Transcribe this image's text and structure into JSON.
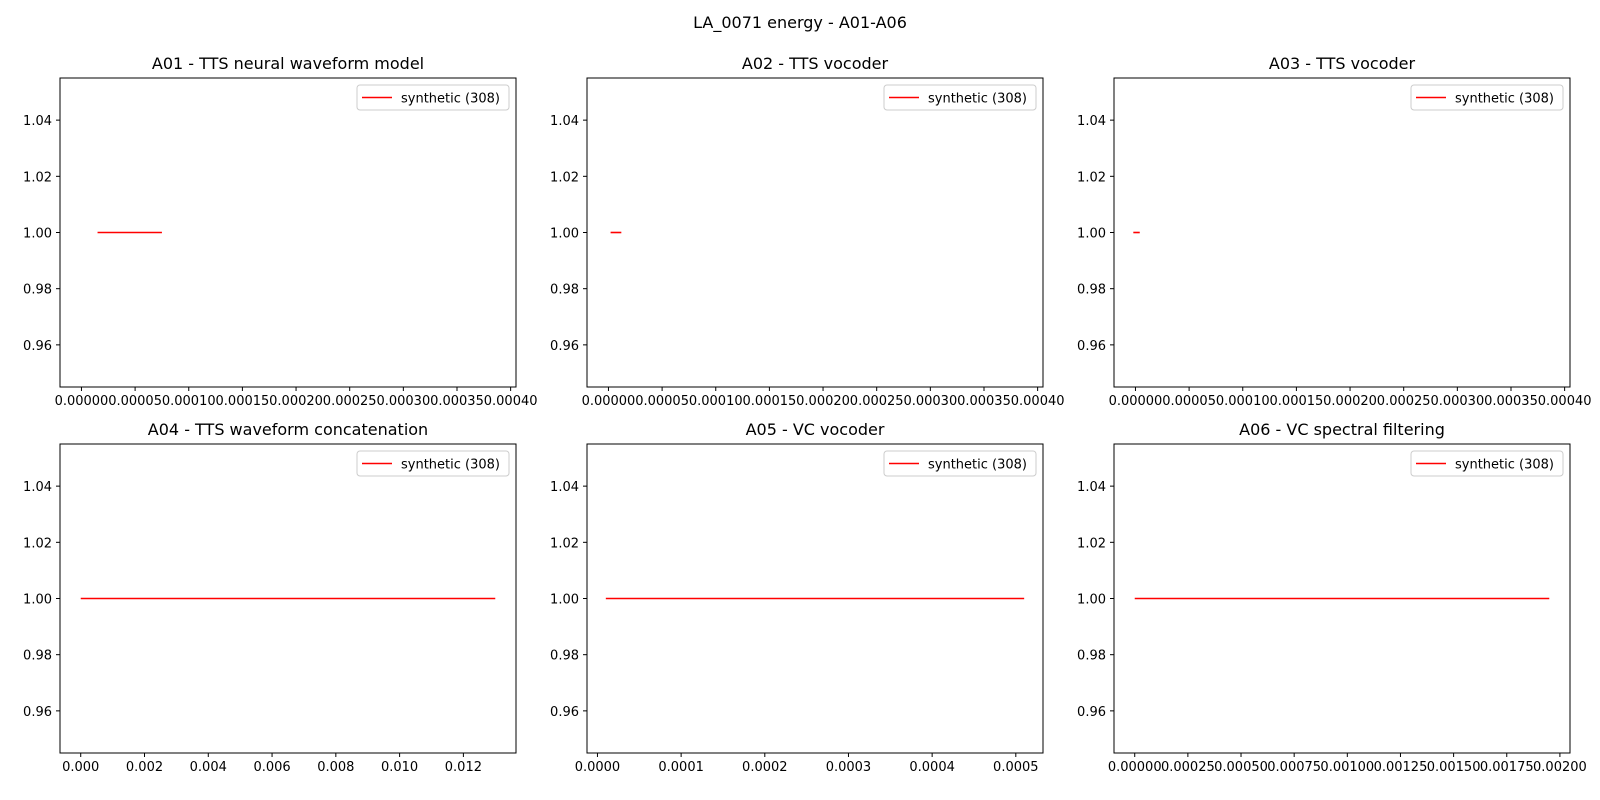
{
  "figure": {
    "title": "LA_0071 energy - A01-A06"
  },
  "colors": {
    "series": "#ff0000",
    "axis": "#000000",
    "legend_border": "#cccccc"
  },
  "chart_data": [
    {
      "type": "line",
      "title": "A01 - TTS neural waveform model",
      "xlabel": "",
      "ylabel": "",
      "xlim": [
        -2e-05,
        0.000405
      ],
      "ylim": [
        0.945,
        1.055
      ],
      "xticks": [
        0.0,
        5e-05,
        0.0001,
        0.00015,
        0.0002,
        0.00025,
        0.0003,
        0.00035,
        0.0004
      ],
      "xtick_labels": [
        "0.00000",
        "0.00005",
        "0.00010",
        "0.00015",
        "0.00020",
        "0.00025",
        "0.00030",
        "0.00035",
        "0.00040"
      ],
      "yticks": [
        0.96,
        0.98,
        1.0,
        1.02,
        1.04
      ],
      "ytick_labels": [
        "0.96",
        "0.98",
        "1.00",
        "1.02",
        "1.04"
      ],
      "legend": "upper right",
      "grid": false,
      "series": [
        {
          "name": "synthetic (308)",
          "x": [
            1.5e-05,
            7.5e-05
          ],
          "y": [
            1.0,
            1.0
          ]
        }
      ]
    },
    {
      "type": "line",
      "title": "A02 - TTS vocoder",
      "xlabel": "",
      "ylabel": "",
      "xlim": [
        -2e-05,
        0.000405
      ],
      "ylim": [
        0.945,
        1.055
      ],
      "xticks": [
        0.0,
        5e-05,
        0.0001,
        0.00015,
        0.0002,
        0.00025,
        0.0003,
        0.00035,
        0.0004
      ],
      "xtick_labels": [
        "0.00000",
        "0.00005",
        "0.00010",
        "0.00015",
        "0.00020",
        "0.00025",
        "0.00030",
        "0.00035",
        "0.00040"
      ],
      "yticks": [
        0.96,
        0.98,
        1.0,
        1.02,
        1.04
      ],
      "ytick_labels": [
        "0.96",
        "0.98",
        "1.00",
        "1.02",
        "1.04"
      ],
      "legend": "upper right",
      "grid": false,
      "series": [
        {
          "name": "synthetic (308)",
          "x": [
            2e-06,
            1.2e-05
          ],
          "y": [
            1.0,
            1.0
          ]
        }
      ]
    },
    {
      "type": "line",
      "title": "A03 - TTS vocoder",
      "xlabel": "",
      "ylabel": "",
      "xlim": [
        -2e-05,
        0.000405
      ],
      "ylim": [
        0.945,
        1.055
      ],
      "xticks": [
        0.0,
        5e-05,
        0.0001,
        0.00015,
        0.0002,
        0.00025,
        0.0003,
        0.00035,
        0.0004
      ],
      "xtick_labels": [
        "0.00000",
        "0.00005",
        "0.00010",
        "0.00015",
        "0.00020",
        "0.00025",
        "0.00030",
        "0.00035",
        "0.00040"
      ],
      "yticks": [
        0.96,
        0.98,
        1.0,
        1.02,
        1.04
      ],
      "ytick_labels": [
        "0.96",
        "0.98",
        "1.00",
        "1.02",
        "1.04"
      ],
      "legend": "upper right",
      "grid": false,
      "series": [
        {
          "name": "synthetic (308)",
          "x": [
            -2e-06,
            4e-06
          ],
          "y": [
            1.0,
            1.0
          ]
        }
      ]
    },
    {
      "type": "line",
      "title": "A04 - TTS waveform concatenation",
      "xlabel": "",
      "ylabel": "",
      "xlim": [
        -0.00065,
        0.01365
      ],
      "ylim": [
        0.945,
        1.055
      ],
      "xticks": [
        0.0,
        0.002,
        0.004,
        0.006,
        0.008,
        0.01,
        0.012
      ],
      "xtick_labels": [
        "0.000",
        "0.002",
        "0.004",
        "0.006",
        "0.008",
        "0.010",
        "0.012"
      ],
      "yticks": [
        0.96,
        0.98,
        1.0,
        1.02,
        1.04
      ],
      "ytick_labels": [
        "0.96",
        "0.98",
        "1.00",
        "1.02",
        "1.04"
      ],
      "legend": "upper right",
      "grid": false,
      "series": [
        {
          "name": "synthetic (308)",
          "x": [
            0.0,
            0.013
          ],
          "y": [
            1.0,
            1.0
          ]
        }
      ]
    },
    {
      "type": "line",
      "title": "A05 - VC vocoder",
      "xlabel": "",
      "ylabel": "",
      "xlim": [
        -1.25e-05,
        0.0005325
      ],
      "ylim": [
        0.945,
        1.055
      ],
      "xticks": [
        0.0,
        0.0001,
        0.0002,
        0.0003,
        0.0004,
        0.0005
      ],
      "xtick_labels": [
        "0.0000",
        "0.0001",
        "0.0002",
        "0.0003",
        "0.0004",
        "0.0005"
      ],
      "yticks": [
        0.96,
        0.98,
        1.0,
        1.02,
        1.04
      ],
      "ytick_labels": [
        "0.96",
        "0.98",
        "1.00",
        "1.02",
        "1.04"
      ],
      "legend": "upper right",
      "grid": false,
      "series": [
        {
          "name": "synthetic (308)",
          "x": [
            1e-05,
            0.00051
          ],
          "y": [
            1.0,
            1.0
          ]
        }
      ]
    },
    {
      "type": "line",
      "title": "A06 - VC spectral filtering",
      "xlabel": "",
      "ylabel": "",
      "xlim": [
        -9.75e-05,
        0.0020475
      ],
      "ylim": [
        0.945,
        1.055
      ],
      "xticks": [
        0.0,
        0.00025,
        0.0005,
        0.00075,
        0.001,
        0.00125,
        0.0015,
        0.00175,
        0.002
      ],
      "xtick_labels": [
        "0.00000",
        "0.00025",
        "0.00050",
        "0.00075",
        "0.00100",
        "0.00125",
        "0.00150",
        "0.00175",
        "0.00200"
      ],
      "yticks": [
        0.96,
        0.98,
        1.0,
        1.02,
        1.04
      ],
      "ytick_labels": [
        "0.96",
        "0.98",
        "1.00",
        "1.02",
        "1.04"
      ],
      "legend": "upper right",
      "grid": false,
      "series": [
        {
          "name": "synthetic (308)",
          "x": [
            0.0,
            0.00195
          ],
          "y": [
            1.0,
            1.0
          ]
        }
      ]
    }
  ]
}
